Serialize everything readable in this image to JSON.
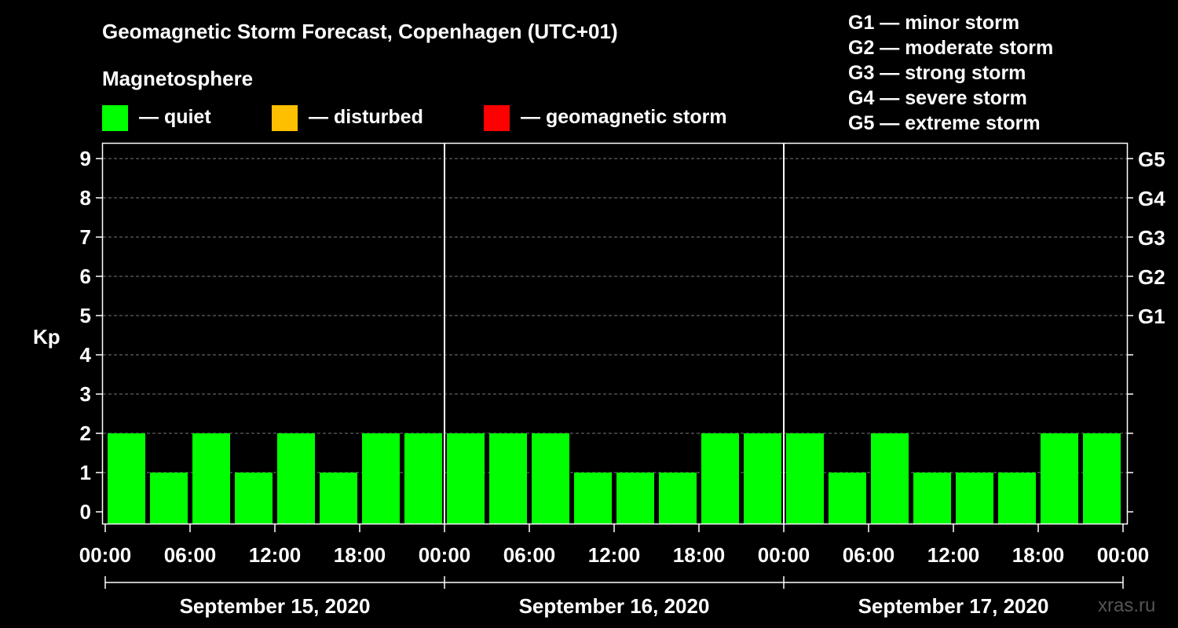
{
  "chart_data": {
    "type": "bar",
    "title": "Geomagnetic Storm Forecast, Copenhagen (UTC+01)",
    "subtitle": "Magnetosphere",
    "ylabel": "Kp",
    "ylim": [
      0,
      9
    ],
    "yticks": [
      "0",
      "1",
      "2",
      "3",
      "4",
      "5",
      "6",
      "7",
      "8",
      "9"
    ],
    "right_ticks": [
      {
        "kp": 5,
        "label": "G1"
      },
      {
        "kp": 6,
        "label": "G2"
      },
      {
        "kp": 7,
        "label": "G3"
      },
      {
        "kp": 8,
        "label": "G4"
      },
      {
        "kp": 9,
        "label": "G5"
      }
    ],
    "status_legend": [
      {
        "label": "— quiet",
        "color": "#00ff00"
      },
      {
        "label": "— disturbed",
        "color": "#ffbf00"
      },
      {
        "label": "— geomagnetic storm",
        "color": "#ff0000"
      }
    ],
    "storm_scale": [
      "G1 — minor storm",
      "G2 — moderate storm",
      "G3 — strong storm",
      "G4 — severe storm",
      "G5 — extreme storm"
    ],
    "xticks": [
      "00:00",
      "06:00",
      "12:00",
      "18:00",
      "00:00",
      "06:00",
      "12:00",
      "18:00",
      "00:00",
      "06:00",
      "12:00",
      "18:00",
      "00:00"
    ],
    "days": [
      "September 15, 2020",
      "September 16, 2020",
      "September 17, 2020"
    ],
    "bar_interval_hours": 3,
    "values": [
      2,
      2,
      1,
      2,
      1,
      2,
      1,
      2,
      2,
      2,
      2,
      2,
      1,
      1,
      1,
      2,
      2,
      2,
      1,
      2,
      1,
      1,
      1,
      2,
      2
    ],
    "bar_color": "#00ff00",
    "grid": true,
    "watermark": "xras.ru"
  }
}
